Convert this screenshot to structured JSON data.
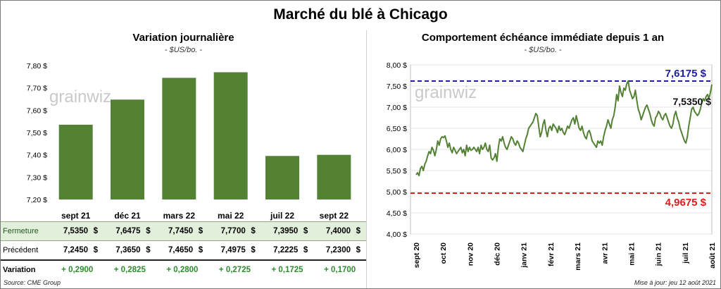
{
  "title": "Marché du blé à Chicago",
  "watermark": "grainwiz",
  "colors": {
    "bar": "#548235",
    "line": "#548235",
    "upper": "#1e1ea8",
    "lower": "#e41a1a",
    "variation": "#2e8b2e",
    "table_highlight": "#e2efda"
  },
  "left_panel": {
    "title": "Variation  journalière",
    "unit": "- $US/bo. -"
  },
  "right_panel": {
    "title": "Comportement  échéance immédiate depuis 1 an",
    "unit": "- $US/bo. -"
  },
  "table": {
    "rows": [
      {
        "label": "Fermeture",
        "values": [
          "7,5350",
          "7,6475",
          "7,7450",
          "7,7700",
          "7,3950",
          "7,4000"
        ],
        "unit": "$"
      },
      {
        "label": "Précédent",
        "values": [
          "7,2450",
          "7,3650",
          "7,4650",
          "7,4975",
          "7,2225",
          "7,2300"
        ],
        "unit": "$"
      },
      {
        "label": "Variation",
        "values": [
          "+ 0,2900",
          "+ 0,2825",
          "+ 0,2800",
          "+ 0,2725",
          "+ 0,1725",
          "+ 0,1700"
        ],
        "unit": ""
      }
    ]
  },
  "footer": {
    "source": "Source: CME Group",
    "updated": "Mise à jour: jeu 12 août 2021"
  },
  "chart_data": [
    {
      "type": "bar",
      "categories": [
        "sept 21",
        "déc 21",
        "mars 22",
        "mai 22",
        "juil 22",
        "sept 22"
      ],
      "values": [
        7.535,
        7.6475,
        7.745,
        7.77,
        7.395,
        7.4
      ],
      "ylim": [
        7.2,
        7.8
      ],
      "yticks": [
        "7,20 $",
        "7,30 $",
        "7,40 $",
        "7,50 $",
        "7,60 $",
        "7,70 $",
        "7,80 $"
      ],
      "grid": false
    },
    {
      "type": "line",
      "ylim": [
        4.0,
        8.0
      ],
      "yticks": [
        "4,00 $",
        "4,50 $",
        "5,00 $",
        "5,50 $",
        "6,00 $",
        "6,50 $",
        "7,00 $",
        "7,50 $",
        "8,00 $"
      ],
      "xticks": [
        "sept 20",
        "oct 20",
        "nov 20",
        "déc 20",
        "janv 21",
        "févr 21",
        "mars 21",
        "avr 21",
        "mai 21",
        "juin 21",
        "juil 21",
        "août 21"
      ],
      "grid": true,
      "series": [
        {
          "values": [
            5.4,
            5.45,
            5.38,
            5.55,
            5.6,
            5.5,
            5.65,
            5.72,
            5.85,
            5.95,
            5.9,
            6.05,
            5.98,
            5.85,
            6.0,
            6.2,
            6.1,
            6.25,
            6.3,
            6.28,
            6.32,
            6.2,
            6.05,
            6.15,
            6.0,
            5.92,
            6.05,
            5.98,
            5.9,
            5.95,
            6.0,
            6.05,
            5.92,
            6.0,
            5.85,
            6.1,
            5.95,
            6.05,
            5.98,
            6.0,
            6.05,
            6.0,
            5.95,
            6.05,
            5.9,
            6.1,
            6.0,
            6.05,
            6.15,
            6.0,
            5.95,
            6.1,
            5.8,
            5.75,
            5.8,
            5.9,
            5.72,
            6.05,
            6.25,
            6.2,
            6.3,
            6.15,
            6.05,
            6.0,
            6.1,
            6.2,
            6.3,
            6.25,
            6.15,
            6.1,
            6.2,
            6.15,
            6.05,
            6.0,
            5.95,
            6.1,
            6.25,
            6.35,
            6.5,
            6.55,
            6.6,
            6.65,
            6.75,
            6.85,
            6.8,
            6.55,
            6.3,
            6.4,
            6.6,
            6.7,
            6.45,
            6.3,
            6.5,
            6.55,
            6.45,
            6.6,
            6.55,
            6.5,
            6.4,
            6.55,
            6.45,
            6.5,
            6.4,
            6.35,
            6.45,
            6.55,
            6.5,
            6.6,
            6.7,
            6.75,
            6.6,
            6.8,
            6.65,
            6.5,
            6.45,
            6.55,
            6.4,
            6.3,
            6.25,
            6.4,
            6.45,
            6.35,
            6.2,
            6.15,
            6.1,
            6.05,
            6.2,
            6.15,
            6.2,
            6.1,
            6.3,
            6.45,
            6.55,
            6.7,
            6.6,
            6.5,
            6.7,
            6.8,
            7.0,
            7.3,
            7.15,
            7.5,
            7.35,
            7.25,
            7.45,
            7.4,
            7.55,
            7.62,
            7.4,
            7.3,
            7.2,
            7.25,
            7.4,
            7.15,
            6.95,
            6.85,
            6.7,
            6.8,
            6.9,
            7.0,
            7.05,
            6.95,
            6.85,
            6.7,
            6.6,
            6.55,
            6.75,
            6.8,
            6.9,
            6.85,
            6.75,
            6.7,
            6.8,
            6.85,
            6.75,
            6.65,
            6.55,
            6.5,
            6.6,
            6.8,
            6.9,
            6.75,
            6.65,
            6.5,
            6.4,
            6.3,
            6.2,
            6.15,
            6.3,
            6.55,
            6.75,
            6.95,
            7.0,
            6.9,
            6.85,
            6.8,
            6.85,
            6.95,
            7.1,
            7.2,
            7.15,
            7.25,
            7.3,
            7.2,
            7.35,
            7.535
          ]
        }
      ],
      "reference_lines": [
        {
          "value": 7.6175,
          "label": "7,6175 $",
          "color": "#1e1ea8"
        },
        {
          "value": 4.9675,
          "label": "4,9675 $",
          "color": "#e41a1a"
        }
      ],
      "last_label": "7,5350 $"
    }
  ]
}
